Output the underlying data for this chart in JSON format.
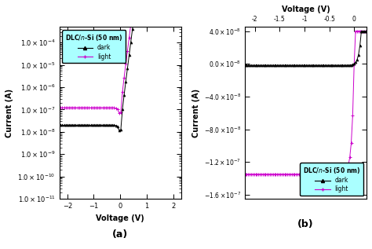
{
  "panel_a": {
    "xlabel": "Voltage (V)",
    "ylabel": "Current (A)",
    "label_a": "(a)",
    "xlim": [
      -2.3,
      2.3
    ],
    "ylim_log": [
      1e-11,
      0.0005
    ],
    "legend_dark": "dark",
    "legend_light": "light",
    "dark_color": "#000000",
    "light_color": "#cc00cc",
    "legend_bg": "#aaffff",
    "I0_dark": 2e-08,
    "I0_light": 1.2e-07,
    "n_dark": 1.8,
    "n_light": 1.8
  },
  "panel_b": {
    "top_xlabel": "Voltage (V)",
    "ylabel": "Current (A)",
    "label_b": "(b)",
    "xlim": [
      -2.2,
      0.25
    ],
    "ylim": [
      -1.65e-07,
      4.5e-08
    ],
    "legend_dark": "dark",
    "legend_light": "light",
    "dark_color": "#000000",
    "light_color": "#cc00cc",
    "legend_bg": "#aaffff",
    "dark_sat": -2e-09,
    "light_sat": -1.35e-07,
    "yticks": [
      -1.6e-07,
      -1.2e-07,
      -8e-08,
      -4e-08,
      0.0,
      4e-08
    ],
    "ytick_labels": [
      "-1.6×10⁻⁷",
      "-1.2×10⁻⁷",
      "-8.0×10⁻⁸",
      "-4.0×10⁻⁸",
      "0.0×10⁻⁸",
      "4.0×10⁻⁸"
    ],
    "xticks": [
      -2.0,
      -1.5,
      -1.0,
      -0.5,
      0.0
    ]
  }
}
